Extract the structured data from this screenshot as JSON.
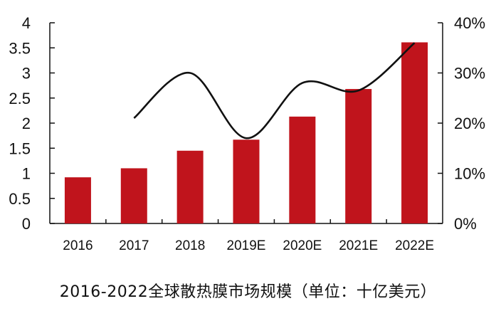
{
  "chart_data": {
    "type": "bar",
    "title": "2016-2022全球散热膜市场规模（单位：十亿美元）",
    "categories": [
      "2016",
      "2017",
      "2018",
      "2019E",
      "2020E",
      "2021E",
      "2022E"
    ],
    "series": [
      {
        "type": "bar",
        "axis": "left",
        "color": "#c0141c",
        "values": [
          0.92,
          1.1,
          1.45,
          1.67,
          2.13,
          2.68,
          3.61
        ]
      },
      {
        "type": "line",
        "axis": "right",
        "color": "#111111",
        "values": [
          null,
          21,
          30,
          17,
          28,
          26.5,
          36
        ]
      }
    ],
    "y_left": {
      "min": 0,
      "max": 4,
      "ticks": [
        "0",
        "0.5",
        "1",
        "1.5",
        "2",
        "2.5",
        "3",
        "3.5",
        "4"
      ]
    },
    "y_right": {
      "min": 0,
      "max": 40,
      "ticks": [
        "0%",
        "10%",
        "20%",
        "30%",
        "40%"
      ]
    },
    "grid": false,
    "legend": "none"
  }
}
